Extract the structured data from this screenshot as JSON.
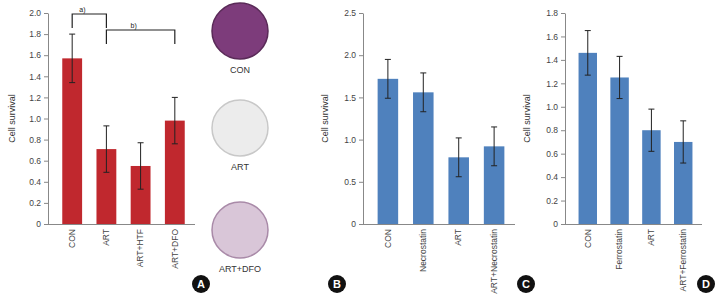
{
  "chart_data": [
    {
      "type": "bar",
      "label": "A",
      "y_label": "Cell survival",
      "categories": [
        "CON",
        "ART",
        "ART+HTF",
        "ART+DFO"
      ],
      "values": [
        1.57,
        0.71,
        0.55,
        0.98
      ],
      "errors": [
        0.23,
        0.22,
        0.22,
        0.22
      ],
      "color": "#c0282e",
      "annotations": [
        "a)",
        "b)"
      ],
      "ylim": [
        0,
        2
      ],
      "yticks": [
        0,
        0.2,
        0.4,
        0.6,
        0.8,
        {
          "value": 1,
          "label": "1.0"
        },
        1.2,
        1.4,
        1.6,
        1.8,
        {
          "value": 2,
          "label": "2.0"
        }
      ]
    },
    {
      "type": "image",
      "label": "B",
      "categories": [
        "CON",
        "ART",
        "ART+DFO"
      ]
    },
    {
      "type": "bar",
      "label": "C",
      "y_label": "Cell survival",
      "categories": [
        "CON",
        "Necrostatin",
        "ART",
        "ART+Necrostatin"
      ],
      "values": [
        1.72,
        1.56,
        0.79,
        0.92
      ],
      "errors": [
        0.23,
        0.23,
        0.23,
        0.23
      ],
      "color": "#4f81bd",
      "ylim": [
        0,
        2.5
      ],
      "yticks": [
        0,
        0.5,
        {
          "value": 1,
          "label": "1.0"
        },
        1.5,
        {
          "value": 2,
          "label": "2.0"
        },
        2.5
      ]
    },
    {
      "type": "bar",
      "label": "D",
      "y_label": "Cell survival",
      "categories": [
        "CON",
        "Ferrostatin",
        "ART",
        "ART+Ferrostatin"
      ],
      "values": [
        1.46,
        1.25,
        0.8,
        0.7
      ],
      "errors": [
        0.19,
        0.18,
        0.18,
        0.18
      ],
      "color": "#4f81bd",
      "ylim": [
        0,
        1.8
      ],
      "yticks": [
        0,
        0.2,
        0.4,
        0.6,
        0.8,
        {
          "value": 1,
          "label": "1.0"
        },
        1.2,
        1.4,
        1.6,
        1.8
      ]
    }
  ]
}
